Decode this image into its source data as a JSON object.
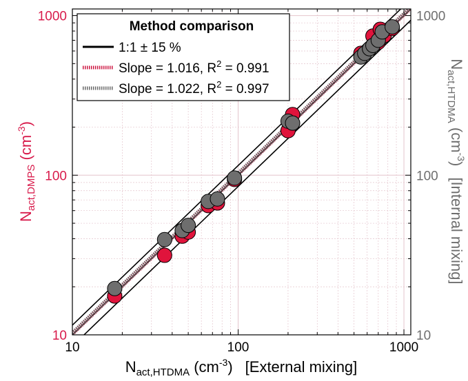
{
  "chart_data": {
    "type": "scatter",
    "x_scale": "log",
    "y_scale": "log",
    "xlim": [
      10,
      1100
    ],
    "ylim": [
      10,
      1100
    ],
    "grid": true,
    "legend_placement": "top-left",
    "x_ticks": [
      "10",
      "100",
      "1000"
    ],
    "y_ticks_left": [
      "10",
      "100",
      "1000"
    ],
    "y_ticks_right": [
      "10",
      "100",
      "1000"
    ],
    "xlabel": {
      "main": "N",
      "sub": "act,HTDMA",
      "unit_open": " (cm",
      "unit_exp": "-3",
      "unit_close": ")",
      "suffix": "[External mixing]"
    },
    "ylabel_left": {
      "main": "N",
      "sub": "act,DMPS",
      "unit_open": " (cm",
      "unit_exp": "-3",
      "unit_close": ")"
    },
    "ylabel_right": {
      "main": "N",
      "sub": "act,HTDMA",
      "unit_open": " (cm",
      "unit_exp": "-3",
      "unit_close": ")",
      "suffix": "[Internal mixing]"
    },
    "legend": {
      "title": "Method comparison",
      "entries": [
        {
          "label": "1:1 ± 15 %",
          "style": "solid",
          "color": "#000000"
        },
        {
          "label_main": "Slope = 1.016, R",
          "label_exp": "2",
          "label_tail": " = 0.991",
          "style": "dotted",
          "color": "#cc1440"
        },
        {
          "label_main": "Slope = 1.022, R",
          "label_exp": "2",
          "label_tail": " = 0.997",
          "style": "dotted",
          "color": "#6a6a6a"
        }
      ]
    },
    "one_to_one": {
      "factor_low": 0.85,
      "factor_high": 1.15
    },
    "fits": [
      {
        "slope": 1.016,
        "r2": 0.991,
        "color": "#cc1440"
      },
      {
        "slope": 1.022,
        "r2": 0.997,
        "color": "#6a6a6a"
      }
    ],
    "series": [
      {
        "color": "#e0143c",
        "points": [
          [
            18,
            17.5
          ],
          [
            36,
            31.5
          ],
          [
            46,
            41.5
          ],
          [
            50,
            44
          ],
          [
            66,
            64.5
          ],
          [
            75,
            67
          ],
          [
            95,
            94
          ],
          [
            200,
            190
          ],
          [
            213,
            240
          ],
          [
            550,
            580
          ],
          [
            650,
            745
          ],
          [
            700,
            680
          ],
          [
            720,
            820
          ],
          [
            760,
            750
          ],
          [
            850,
            830
          ]
        ]
      },
      {
        "color": "#6e6e6e",
        "points": [
          [
            18,
            19.5
          ],
          [
            36,
            39.5
          ],
          [
            46,
            45
          ],
          [
            50,
            48.5
          ],
          [
            66,
            68.5
          ],
          [
            75,
            71
          ],
          [
            95,
            96
          ],
          [
            200,
            218
          ],
          [
            213,
            212
          ],
          [
            550,
            550
          ],
          [
            580,
            580
          ],
          [
            620,
            620
          ],
          [
            650,
            650
          ],
          [
            700,
            700
          ],
          [
            740,
            790
          ],
          [
            850,
            850
          ]
        ]
      }
    ]
  },
  "colors": {
    "left_axis": "#d81b4b",
    "right_axis": "#6e6e6e",
    "grid": "#e4c4cc"
  }
}
